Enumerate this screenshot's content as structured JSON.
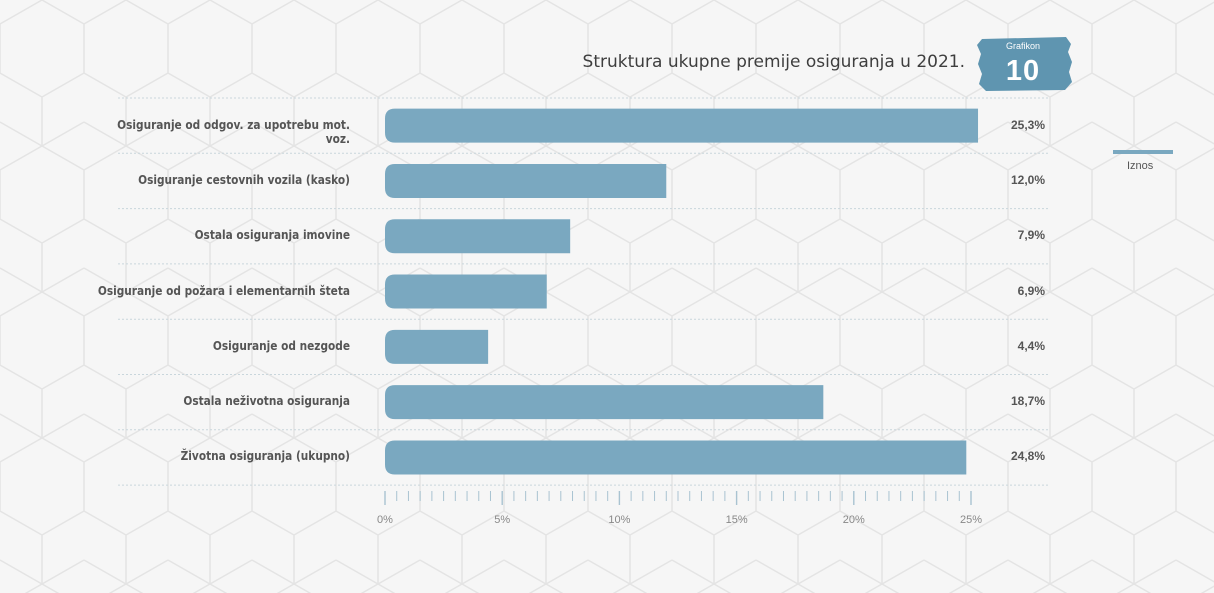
{
  "title": "Struktura ukupne premije osiguranja u 2021.",
  "badge": {
    "label": "Grafikon",
    "number": "10"
  },
  "legend": {
    "label": "Iznos"
  },
  "colors": {
    "bar": "#7aa8c0",
    "badge": "#5f95b0",
    "grid": "#c9d6dc"
  },
  "chart_data": {
    "type": "bar",
    "orientation": "horizontal",
    "title": "Struktura ukupne premije osiguranja u 2021.",
    "categories": [
      "Osiguranje od odgov. za upotrebu mot. voz.",
      "Osiguranje cestovnih vozila (kasko)",
      "Ostala osiguranja imovine",
      "Osiguranje od požara i elementarnih šteta",
      "Osiguranje od nezgode",
      "Ostala neživotna osiguranja",
      "Životna osiguranja (ukupno)"
    ],
    "series": [
      {
        "name": "Iznos",
        "values": [
          25.3,
          12.0,
          7.9,
          6.9,
          4.4,
          18.7,
          24.8
        ]
      }
    ],
    "value_labels": [
      "25,3%",
      "12,0%",
      "7,9%",
      "6,9%",
      "4,4%",
      "18,7%",
      "24,8%"
    ],
    "xlim": [
      0,
      25
    ],
    "ticks": [
      0,
      5,
      10,
      15,
      20,
      25
    ],
    "tick_labels": [
      "0%",
      "5%",
      "10%",
      "15%",
      "20%",
      "25%"
    ],
    "legend_position": "right"
  }
}
